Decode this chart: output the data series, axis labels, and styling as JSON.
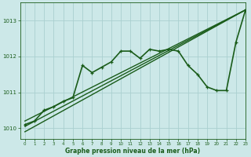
{
  "title": "Graphe pression niveau de la mer (hPa)",
  "background_color": "#cce8e8",
  "grid_color": "#aad0d0",
  "line_color": "#1a5c1a",
  "xlim": [
    -0.5,
    23
  ],
  "ylim": [
    1009.7,
    1013.5
  ],
  "yticks": [
    1010,
    1011,
    1012,
    1013
  ],
  "xticks": [
    0,
    1,
    2,
    3,
    4,
    5,
    6,
    7,
    8,
    9,
    10,
    11,
    12,
    13,
    14,
    15,
    16,
    17,
    18,
    19,
    20,
    21,
    22,
    23
  ],
  "series": [
    {
      "x": [
        0,
        23
      ],
      "y": [
        1010.05,
        1013.3
      ],
      "marker": false,
      "linewidth": 1.0
    },
    {
      "x": [
        0,
        23
      ],
      "y": [
        1010.2,
        1013.3
      ],
      "marker": false,
      "linewidth": 1.0
    },
    {
      "x": [
        0,
        23
      ],
      "y": [
        1009.9,
        1013.3
      ],
      "marker": false,
      "linewidth": 1.0
    },
    {
      "x": [
        0,
        1,
        2,
        3,
        4,
        5,
        6,
        7,
        8,
        9,
        10,
        11,
        12,
        13,
        14,
        15,
        16,
        17,
        18,
        19,
        20,
        21,
        22,
        23
      ],
      "y": [
        1010.1,
        1010.2,
        1010.5,
        1010.6,
        1010.75,
        1010.85,
        1011.75,
        1011.55,
        1011.7,
        1011.85,
        1012.15,
        1012.15,
        1011.95,
        1012.2,
        1012.15,
        1012.2,
        1012.15,
        1011.75,
        1011.5,
        1011.15,
        1011.05,
        1011.05,
        1012.4,
        1013.3
      ],
      "marker": true,
      "linewidth": 1.2
    }
  ],
  "figsize": [
    3.2,
    2.0
  ],
  "dpi": 100
}
